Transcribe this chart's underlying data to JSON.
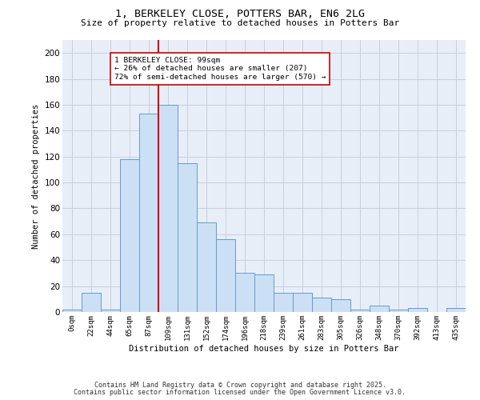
{
  "title1": "1, BERKELEY CLOSE, POTTERS BAR, EN6 2LG",
  "title2": "Size of property relative to detached houses in Potters Bar",
  "xlabel": "Distribution of detached houses by size in Potters Bar",
  "ylabel": "Number of detached properties",
  "bin_labels": [
    "0sqm",
    "22sqm",
    "44sqm",
    "65sqm",
    "87sqm",
    "109sqm",
    "131sqm",
    "152sqm",
    "174sqm",
    "196sqm",
    "218sqm",
    "239sqm",
    "261sqm",
    "283sqm",
    "305sqm",
    "326sqm",
    "348sqm",
    "370sqm",
    "392sqm",
    "413sqm",
    "435sqm"
  ],
  "bar_heights": [
    2,
    15,
    2,
    118,
    153,
    160,
    115,
    69,
    56,
    30,
    29,
    15,
    15,
    11,
    10,
    2,
    5,
    2,
    3,
    0,
    3
  ],
  "bar_color": "#cce0f5",
  "bar_edge_color": "#6699cc",
  "vline_x": 4.5,
  "vline_color": "#cc0000",
  "annotation_line1": "1 BERKELEY CLOSE: 99sqm",
  "annotation_line2": "← 26% of detached houses are smaller (207)",
  "annotation_line3": "72% of semi-detached houses are larger (570) →",
  "annotation_box_color": "#ffffff",
  "annotation_box_edge": "#cc0000",
  "ylim": [
    0,
    210
  ],
  "yticks": [
    0,
    20,
    40,
    60,
    80,
    100,
    120,
    140,
    160,
    180,
    200
  ],
  "grid_color": "#c8d0dc",
  "background_color": "#e8eef8",
  "footer1": "Contains HM Land Registry data © Crown copyright and database right 2025.",
  "footer2": "Contains public sector information licensed under the Open Government Licence v3.0."
}
